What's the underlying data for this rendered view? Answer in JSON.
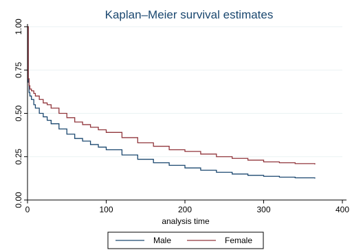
{
  "chart_data": {
    "type": "line",
    "title": "Kaplan–Meier survival estimates",
    "xlabel": "analysis time",
    "ylabel": "",
    "xlim": [
      0,
      400
    ],
    "ylim": [
      0,
      1
    ],
    "xticks": [
      0,
      100,
      200,
      300,
      400
    ],
    "yticks": [
      0,
      0.25,
      0.5,
      0.75,
      1
    ],
    "xtick_labels": [
      "0",
      "100",
      "200",
      "300",
      "400"
    ],
    "ytick_labels": [
      "0.00",
      "0.25",
      "0.50",
      "0.75",
      "1.00"
    ],
    "grid": "horizontal",
    "legend_position": "bottom-center",
    "series": [
      {
        "name": "Male",
        "color": "#1a476f",
        "x": [
          0,
          1,
          1,
          2,
          3,
          5,
          8,
          10,
          15,
          20,
          25,
          30,
          40,
          50,
          60,
          70,
          80,
          90,
          100,
          120,
          140,
          160,
          180,
          200,
          220,
          240,
          260,
          280,
          300,
          320,
          340,
          365
        ],
        "y": [
          1.0,
          1.0,
          0.68,
          0.62,
          0.6,
          0.58,
          0.55,
          0.53,
          0.5,
          0.48,
          0.46,
          0.44,
          0.41,
          0.38,
          0.355,
          0.34,
          0.32,
          0.305,
          0.29,
          0.26,
          0.235,
          0.215,
          0.2,
          0.185,
          0.172,
          0.16,
          0.15,
          0.142,
          0.137,
          0.132,
          0.128,
          0.124
        ]
      },
      {
        "name": "Female",
        "color": "#90353b",
        "x": [
          0,
          1,
          1,
          2,
          3,
          5,
          8,
          10,
          15,
          20,
          25,
          30,
          40,
          50,
          60,
          70,
          80,
          90,
          100,
          120,
          140,
          160,
          180,
          200,
          220,
          240,
          260,
          280,
          300,
          320,
          340,
          365
        ],
        "y": [
          1.0,
          1.0,
          0.7,
          0.66,
          0.64,
          0.63,
          0.615,
          0.6,
          0.58,
          0.56,
          0.55,
          0.53,
          0.5,
          0.475,
          0.45,
          0.435,
          0.42,
          0.405,
          0.39,
          0.36,
          0.33,
          0.31,
          0.29,
          0.28,
          0.265,
          0.25,
          0.24,
          0.23,
          0.22,
          0.215,
          0.21,
          0.205
        ]
      }
    ]
  }
}
